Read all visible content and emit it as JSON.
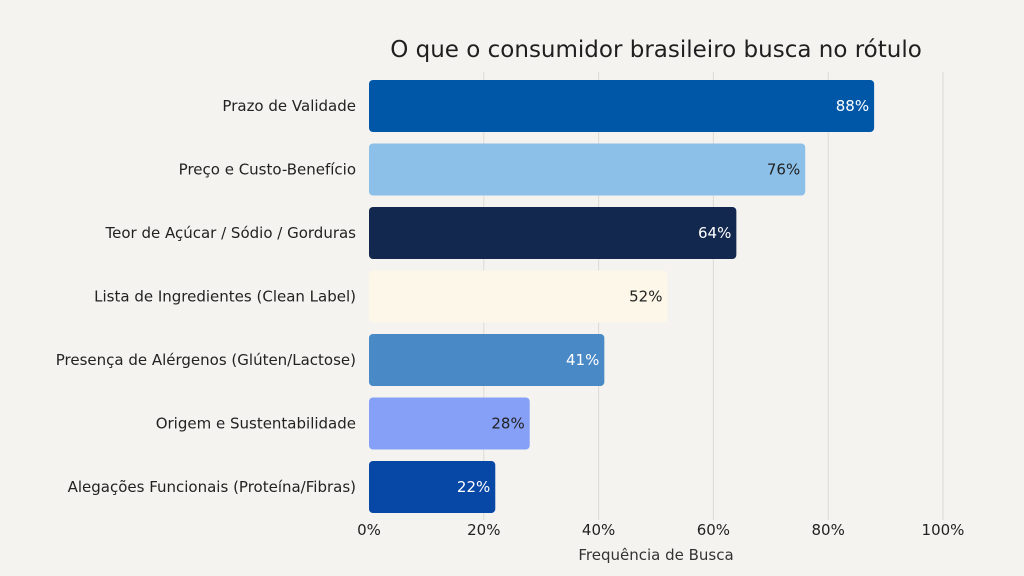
{
  "chart_data": {
    "type": "bar",
    "orientation": "horizontal",
    "title": "O que o consumidor brasileiro busca no rótulo",
    "xlabel": "Frequência de Busca",
    "ylabel": "",
    "xlim": [
      0,
      100
    ],
    "x_ticks": [
      0,
      20,
      40,
      60,
      80,
      100
    ],
    "x_tick_labels": [
      "0%",
      "20%",
      "40%",
      "60%",
      "80%",
      "100%"
    ],
    "grid": "vertical",
    "categories": [
      "Prazo de Validade",
      "Preço e Custo-Benefício",
      "Teor de Açúcar / Sódio / Gorduras",
      "Lista de Ingredientes (Clean Label)",
      "Presença de Alérgenos (Glúten/Lactose)",
      "Origem e Sustentabilidade",
      "Alegações Funcionais (Proteína/Fibras)"
    ],
    "values": [
      88,
      76,
      64,
      52,
      41,
      28,
      22
    ],
    "value_labels": [
      "88%",
      "76%",
      "64%",
      "52%",
      "41%",
      "28%",
      "22%"
    ],
    "bar_colors": [
      "#0057a8",
      "#8cc0e8",
      "#13284f",
      "#fcf7e8",
      "#4889c6",
      "#86a0f7",
      "#0747a6"
    ],
    "label_colors": [
      "#ffffff",
      "#222222",
      "#ffffff",
      "#222222",
      "#ffffff",
      "#222222",
      "#ffffff"
    ]
  }
}
